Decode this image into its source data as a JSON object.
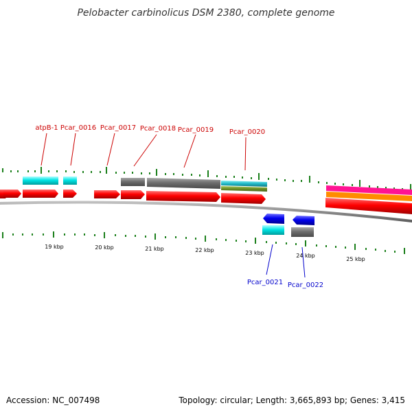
{
  "title": "Pelobacter carbinolicus DSM 2380, complete genome",
  "scale_labels": [
    "19 kbp",
    "20 kbp",
    "21 kbp",
    "22 kbp",
    "23 kbp",
    "24 kbp",
    "25 kbp"
  ],
  "genes_forward": [
    "atpB-1",
    "Pcar_0016",
    "Pcar_0017",
    "Pcar_0018",
    "Pcar_0019",
    "Pcar_0020"
  ],
  "genes_reverse": [
    "Pcar_0021",
    "Pcar_0022"
  ],
  "footer": {
    "accession": "Accession: NC_007498",
    "summary": "Topology: circular; Length: 3,665,893 bp; Genes: 3,415"
  },
  "colors": {
    "forward_label": "#cc0000",
    "reverse_label": "#0000cc",
    "cds": "#ff0000",
    "cds_reverse": "#0000ee",
    "feature_cyan": "#00e5e5",
    "feature_gray": "#6e6e6e",
    "feature_olive": "#6b8e23",
    "feature_magenta": "#ff1493",
    "feature_orange": "#ff8c00",
    "tick": "#1a7f1a",
    "backbone": "#8c8c8c"
  }
}
